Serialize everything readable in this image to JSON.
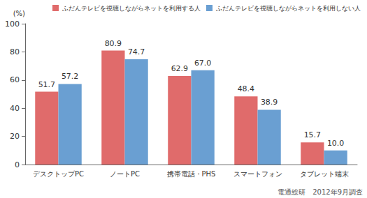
{
  "chart_data": {
    "type": "bar",
    "y_label": "(%)",
    "annotation": "電通総研　2012年9月調査",
    "categories": [
      "デスクトップPC",
      "ノートPC",
      "携帯電話・PHS",
      "スマートフォン",
      "タブレット端末"
    ],
    "series": [
      {
        "name": "ふだんテレビを視聴しながらネットを利用する人",
        "color": "#e06b6b",
        "values": [
          51.7,
          80.9,
          62.9,
          48.4,
          15.7
        ],
        "value_labels": [
          "51.7",
          "80.9",
          "62.9",
          "48.4",
          "15.7"
        ]
      },
      {
        "name": "ふだんテレビを視聴しながらネットを利用しない人",
        "color": "#6a9fd2",
        "values": [
          57.2,
          74.7,
          67.0,
          38.9,
          10.0
        ],
        "value_labels": [
          "57.2",
          "74.7",
          "67.0",
          "38.9",
          "10.0"
        ]
      }
    ],
    "ylim": [
      0,
      100
    ],
    "yticks": [
      0,
      20,
      40,
      60,
      80,
      100
    ],
    "grid": false,
    "legend": "top",
    "data_labels": true
  }
}
